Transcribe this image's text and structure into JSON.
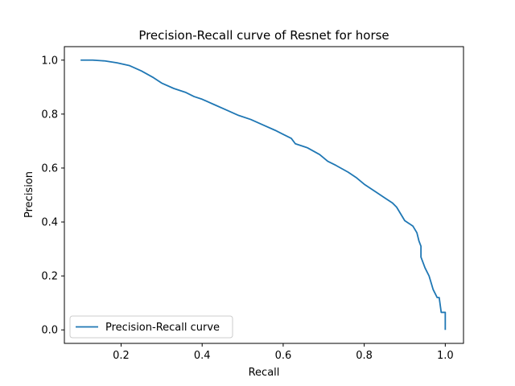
{
  "chart_data": {
    "type": "line",
    "title": "Precision-Recall curve of Resnet for horse",
    "xlabel": "Recall",
    "ylabel": "Precision",
    "xlim": [
      0.06,
      1.045
    ],
    "ylim": [
      -0.05,
      1.05
    ],
    "xticks": [
      0.2,
      0.4,
      0.6,
      0.8,
      1.0
    ],
    "xtick_labels": [
      "0.2",
      "0.4",
      "0.6",
      "0.8",
      "1.0"
    ],
    "yticks": [
      0.0,
      0.2,
      0.4,
      0.6,
      0.8,
      1.0
    ],
    "ytick_labels": [
      "0.0",
      "0.2",
      "0.4",
      "0.6",
      "0.8",
      "1.0"
    ],
    "grid": false,
    "legend_position": "lower-left",
    "series": [
      {
        "name": "Precision-Recall curve",
        "color": "#1f77b4",
        "x": [
          0.1,
          0.13,
          0.16,
          0.19,
          0.22,
          0.25,
          0.28,
          0.3,
          0.33,
          0.36,
          0.38,
          0.4,
          0.43,
          0.46,
          0.49,
          0.52,
          0.55,
          0.58,
          0.6,
          0.62,
          0.63,
          0.66,
          0.69,
          0.71,
          0.73,
          0.76,
          0.78,
          0.8,
          0.83,
          0.85,
          0.87,
          0.88,
          0.89,
          0.9,
          0.91,
          0.92,
          0.93,
          0.935,
          0.94,
          0.94,
          0.945,
          0.95,
          0.96,
          0.965,
          0.97,
          0.975,
          0.98,
          0.985,
          0.99,
          0.99,
          1.0,
          1.0
        ],
        "y": [
          1.0,
          1.0,
          0.997,
          0.99,
          0.98,
          0.96,
          0.935,
          0.915,
          0.895,
          0.88,
          0.865,
          0.855,
          0.835,
          0.815,
          0.795,
          0.78,
          0.76,
          0.74,
          0.725,
          0.71,
          0.69,
          0.675,
          0.65,
          0.625,
          0.61,
          0.585,
          0.565,
          0.54,
          0.51,
          0.49,
          0.47,
          0.455,
          0.43,
          0.405,
          0.395,
          0.385,
          0.36,
          0.33,
          0.31,
          0.27,
          0.25,
          0.23,
          0.2,
          0.175,
          0.15,
          0.135,
          0.12,
          0.12,
          0.065,
          0.065,
          0.065,
          0.0
        ]
      }
    ]
  }
}
